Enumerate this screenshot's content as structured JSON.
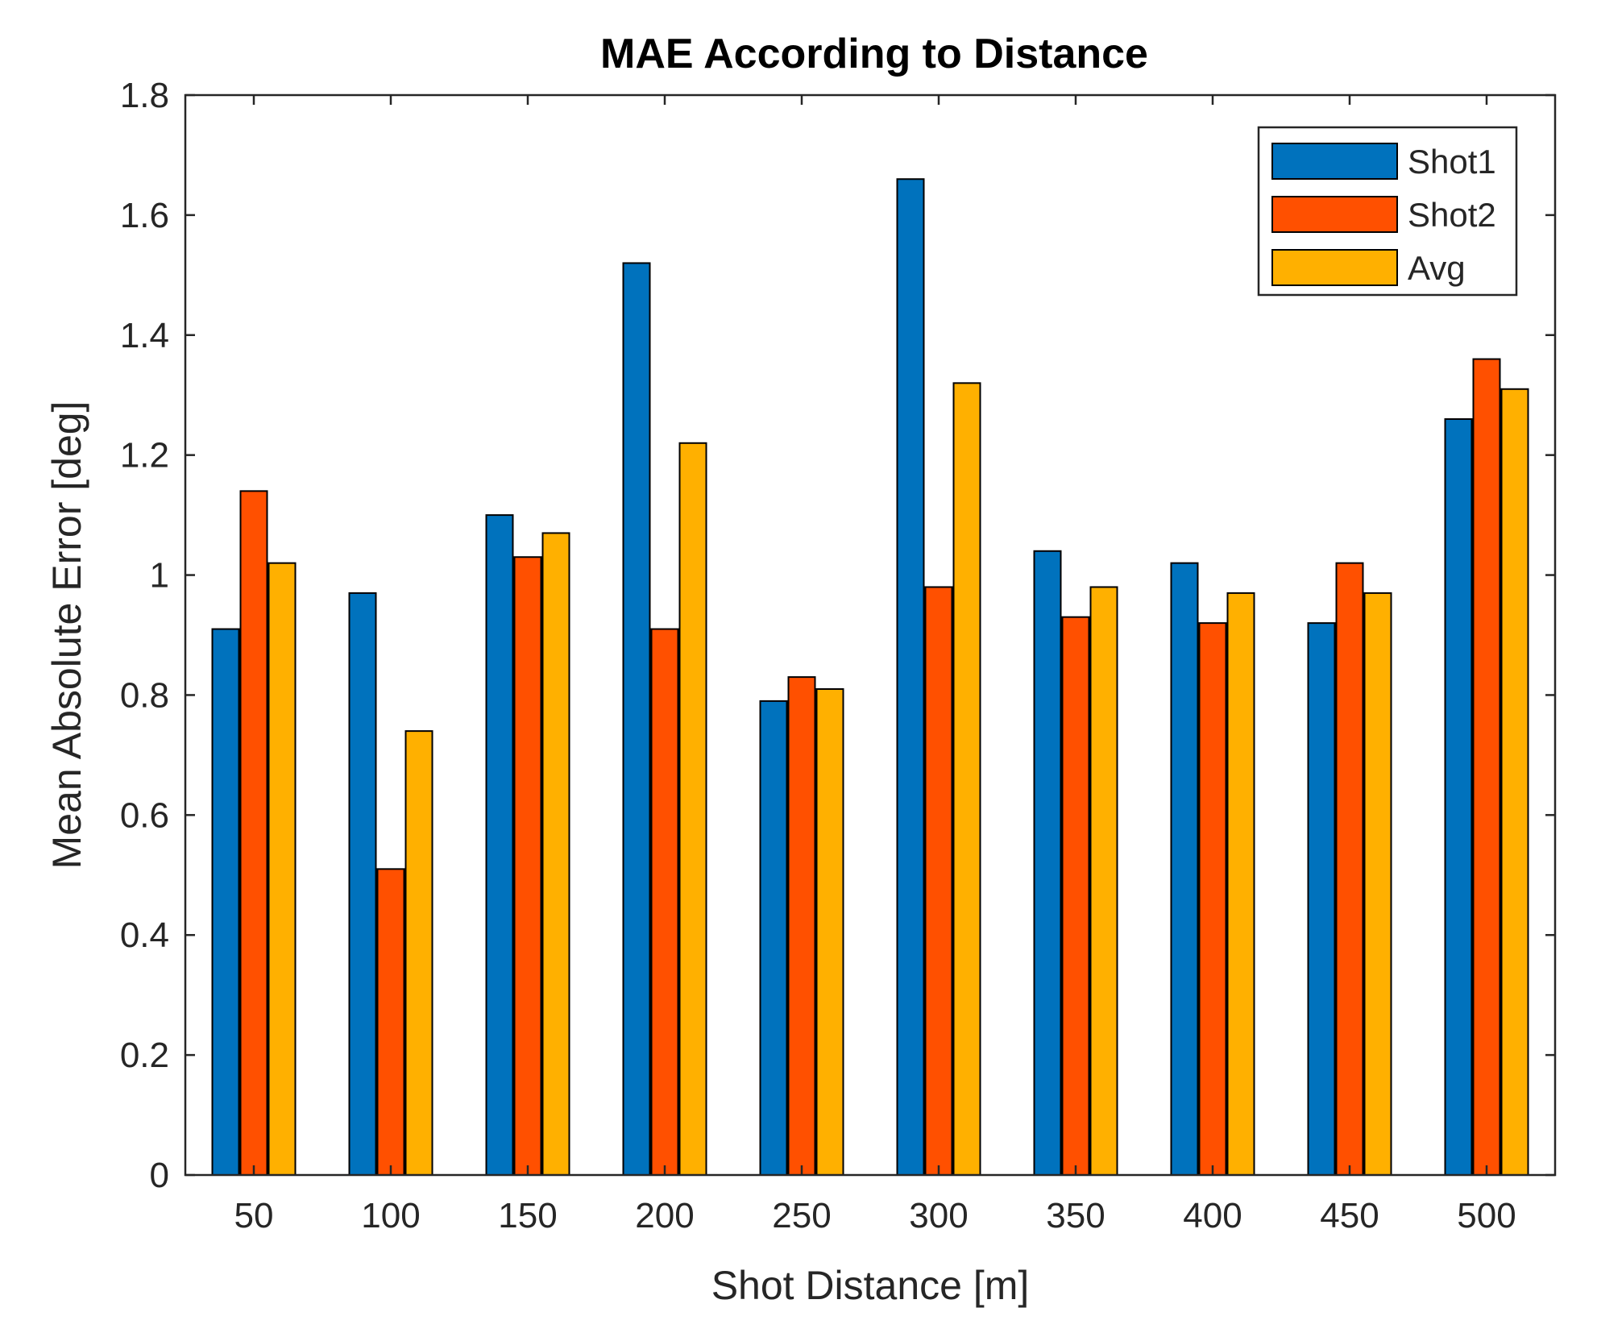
{
  "chart_data": {
    "type": "bar",
    "title": "MAE According to Distance",
    "xlabel": "Shot Distance [m]",
    "ylabel": "Mean Absolute Error [deg]",
    "categories": [
      "50",
      "100",
      "150",
      "200",
      "250",
      "300",
      "350",
      "400",
      "450",
      "500"
    ],
    "series": [
      {
        "name": "Shot1",
        "color": "#0072BD",
        "values": [
          0.91,
          0.97,
          1.1,
          1.52,
          0.79,
          1.66,
          1.04,
          1.02,
          0.92,
          1.26
        ]
      },
      {
        "name": "Shot2",
        "color": "#FF5000",
        "values": [
          1.14,
          0.51,
          1.03,
          0.91,
          0.83,
          0.98,
          0.93,
          0.92,
          1.02,
          1.36
        ]
      },
      {
        "name": "Avg",
        "color": "#FFB000",
        "values": [
          1.02,
          0.74,
          1.07,
          1.22,
          0.81,
          1.32,
          0.98,
          0.97,
          0.97,
          1.31
        ]
      }
    ],
    "ylim": [
      0,
      1.8
    ],
    "yticks": [
      "0",
      "0.2",
      "0.4",
      "0.6",
      "0.8",
      "1",
      "1.2",
      "1.4",
      "1.6",
      "1.8"
    ],
    "legend_position": "top-right",
    "grid": false
  }
}
